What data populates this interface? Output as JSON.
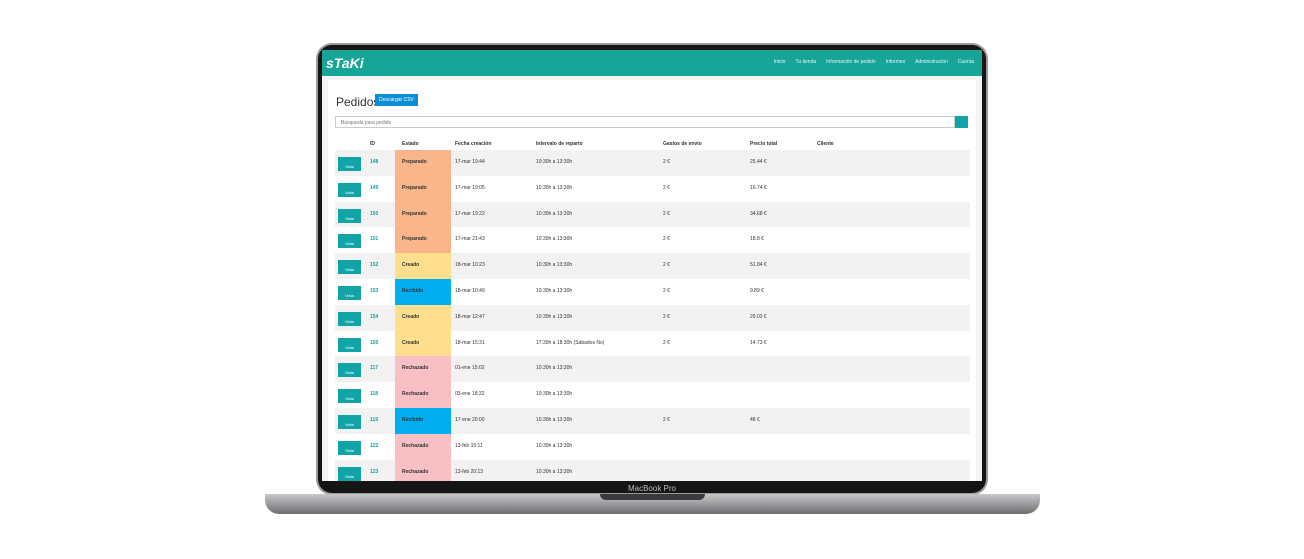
{
  "header": {
    "logo": "sTaKi",
    "nav": [
      "Inicio",
      "Tu tienda",
      "Información de pedido",
      "Informes",
      "Administración",
      "Cuenta"
    ]
  },
  "page": {
    "title": "Pedidos",
    "button": "Descargar CSV",
    "search_placeholder": "Búsqueda para pedido"
  },
  "device": {
    "label": "MacBook Pro"
  },
  "table": {
    "action_label": "Vista",
    "status_colors": {
      "Preparado": "#f9b68a",
      "Creado": "#ffdf8e",
      "Recibido": "#00aeef",
      "Rechazado": "#f8c0c5"
    },
    "headers": [
      "ID",
      "Estado",
      "Fecha creación",
      "Intervalo de reparto",
      "Gastos de envío",
      "Precio total",
      "Cliente"
    ],
    "rows": [
      [
        "148",
        "Preparado",
        "17-mar 19:44",
        "10:30h a 13:30h",
        "2 €",
        "25.44 €"
      ],
      [
        "149",
        "Preparado",
        "17-mar 19:05",
        "10:30h a 13:30h",
        "2 €",
        "16.74 €"
      ],
      [
        "150",
        "Preparado",
        "17-mar 19:22",
        "10:30h a 13:30h",
        "2 €",
        "34.68 €"
      ],
      [
        "151",
        "Preparado",
        "17-mar 21:43",
        "10:30h a 13:30h",
        "2 €",
        "18.8 €"
      ],
      [
        "152",
        "Creado",
        "18-mar 10:23",
        "10:30h a 13:30h",
        "2 €",
        "51.84 €"
      ],
      [
        "153",
        "Recibido",
        "18-mar 10:49",
        "10:30h a 13:30h",
        "2 €",
        "9.89 €"
      ],
      [
        "154",
        "Creado",
        "18-mar 12:47",
        "10:30h a 13:30h",
        "2 €",
        "29.03 €"
      ],
      [
        "155",
        "Creado",
        "18-mar 15:31",
        "17:30h a 18:30h (Sábados No)",
        "2 €",
        "14.73 €"
      ],
      [
        "117",
        "Rechazado",
        "01-ene 15:02",
        "10:30h a 13:30h"
      ],
      [
        "118",
        "Rechazado",
        "03-ene 18:32",
        "10:30h a 13:30h"
      ],
      [
        "119",
        "Recibido",
        "17-ene 20:00",
        "10:30h a 13:30h",
        "2 €",
        "48 €"
      ],
      [
        "122",
        "Rechazado",
        "13-feb 15:11",
        "10:30h a 13:30h"
      ],
      [
        "123",
        "Rechazado",
        "13-feb 20:13",
        "10:30h a 13:30h"
      ]
    ]
  }
}
